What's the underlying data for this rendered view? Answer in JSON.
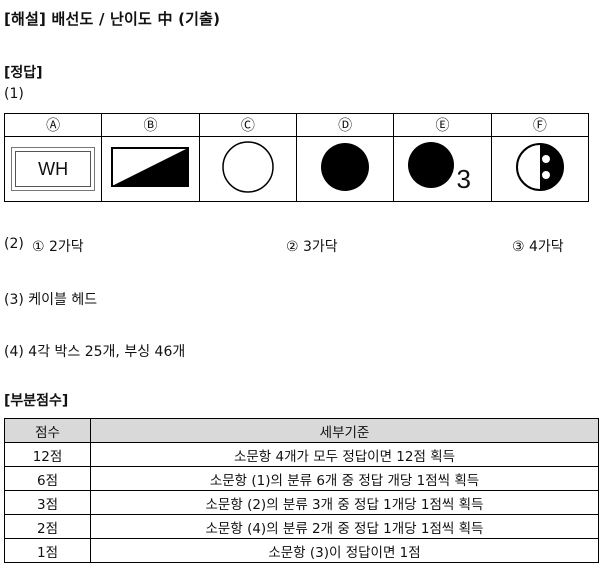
{
  "header": {
    "title": "[해설] 배선도 / 난이도 中 (기출)"
  },
  "answer": {
    "heading": "[정답]",
    "q1_label": "(1)",
    "symbols": [
      {
        "letter": "Ⓐ",
        "icon": "wh-box-icon",
        "text": "WH"
      },
      {
        "letter": "Ⓑ",
        "icon": "half-triangle-icon"
      },
      {
        "letter": "Ⓒ",
        "icon": "empty-circle-icon"
      },
      {
        "letter": "Ⓓ",
        "icon": "filled-circle-icon"
      },
      {
        "letter": "Ⓔ",
        "icon": "filled-circle-3-icon",
        "text": "3"
      },
      {
        "letter": "Ⓕ",
        "icon": "outlet-circle-icon"
      }
    ],
    "q2": {
      "label": "(2)",
      "a1": "① 2가닥",
      "a2": "② 3가닥",
      "a3": "③ 4가닥"
    },
    "q3": "(3) 케이블 헤드",
    "q4": "(4) 4각 박스 25개, 부싱 46개"
  },
  "partial": {
    "heading": "[부분점수]",
    "columns": [
      "점수",
      "세부기준"
    ],
    "rows": [
      {
        "score": "12점",
        "criteria": "소문항 4개가 모두 정답이면 12점 획득"
      },
      {
        "score": "6점",
        "criteria": "소문항 (1)의 분류 6개 중 정답 개당 1점씩 획득"
      },
      {
        "score": "3점",
        "criteria": "소문항 (2)의 분류 3개 중 정답 1개당 1점씩 획득"
      },
      {
        "score": "2점",
        "criteria": "소문항 (4)의 분류 2개 중 정답 1개당 1점씩 획득"
      },
      {
        "score": "1점",
        "criteria": "소문항 (3)이 정답이면 1점"
      }
    ]
  }
}
